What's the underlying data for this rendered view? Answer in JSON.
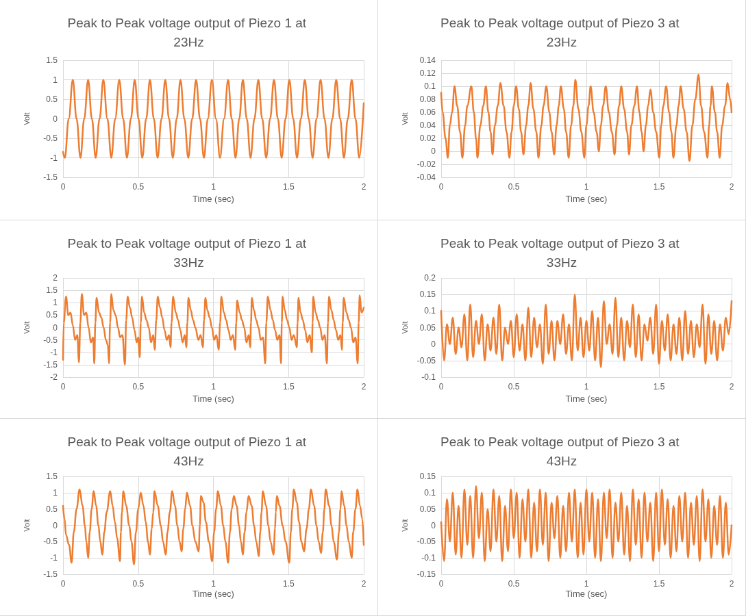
{
  "chart_data": [
    {
      "type": "line",
      "title": "Peak to Peak voltage output of Piezo 1 at 23Hz",
      "xlabel": "Time (sec)",
      "ylabel": "Volt",
      "xlim": [
        0,
        2
      ],
      "xticks": [
        0,
        0.5,
        1,
        1.5,
        2
      ],
      "ylim": [
        -1.5,
        1.5
      ],
      "yticks": [
        -1.5,
        -1,
        -0.5,
        0,
        0.5,
        1,
        1.5
      ],
      "grid": true,
      "marker": "none",
      "line_style": "solid",
      "series": [
        {
          "color": "#ed7d31",
          "x": [
            0,
            0.012,
            0.038,
            0.065,
            0.09,
            0.116,
            0.141,
            0.167,
            0.192,
            0.217,
            0.243,
            0.268,
            0.295,
            0.321,
            0.347,
            0.374,
            0.4,
            0.425,
            0.451,
            0.477,
            0.502,
            0.527,
            0.553,
            0.578,
            0.604,
            0.629,
            0.655,
            0.68,
            0.705,
            0.73,
            0.756,
            0.781,
            0.807,
            0.833,
            0.859,
            0.885,
            0.911,
            0.937,
            0.963,
            0.99,
            1.017,
            1.044,
            1.071,
            1.098,
            1.122,
            1.147,
            1.172,
            1.196,
            1.222,
            1.247,
            1.273,
            1.299,
            1.325,
            1.351,
            1.377,
            1.403,
            1.429,
            1.454,
            1.48,
            1.505,
            1.531,
            1.556,
            1.582,
            1.608,
            1.634,
            1.66,
            1.686,
            1.713,
            1.739,
            1.765,
            1.791,
            1.817,
            1.843,
            1.868,
            1.894,
            1.92,
            1.945,
            1.97,
            2
          ],
          "values": [
            -0.85,
            -1,
            0,
            1,
            0,
            -1,
            0,
            1,
            0,
            -1,
            0,
            1,
            0,
            -1,
            0,
            1,
            0,
            -1,
            0,
            1,
            0,
            -1,
            0,
            1,
            0,
            -1,
            0,
            1,
            0,
            -1,
            0,
            1,
            0,
            -1,
            0,
            1,
            0,
            -1,
            0,
            1,
            0,
            -1,
            0,
            1,
            0,
            -1,
            0,
            1,
            0,
            -1,
            0,
            1,
            0,
            -1,
            0,
            1,
            0,
            -1,
            0,
            1,
            0,
            -1,
            0,
            1,
            0,
            -1,
            0,
            1,
            0,
            -1,
            0,
            1,
            0,
            -1,
            0,
            1,
            0,
            -1,
            0.4
          ]
        }
      ]
    },
    {
      "type": "line",
      "title": "Peak to Peak voltage output of Piezo 3 at 23Hz",
      "xlabel": "Time (sec)",
      "ylabel": "Volt",
      "xlim": [
        0,
        2
      ],
      "xticks": [
        0,
        0.5,
        1,
        1.5,
        2
      ],
      "ylim": [
        -0.04,
        0.14
      ],
      "yticks": [
        -0.04,
        -0.02,
        0,
        0.02,
        0.04,
        0.06,
        0.08,
        0.1,
        0.12,
        0.14
      ],
      "grid": true,
      "marker": "none",
      "line_style": "solid",
      "series": [
        {
          "color": "#ed7d31",
          "x": [
            0,
            0.01,
            0.03,
            0.046,
            0.06,
            0.075,
            0.092,
            0.11,
            0.13,
            0.146,
            0.165,
            0.18,
            0.208,
            0.225,
            0.24,
            0.25,
            0.27,
            0.29,
            0.308,
            0.325,
            0.34,
            0.354,
            0.37,
            0.39,
            0.408,
            0.43,
            0.45,
            0.47,
            0.485,
            0.5,
            0.516,
            0.535,
            0.55,
            0.567,
            0.585,
            0.6,
            0.616,
            0.635,
            0.655,
            0.67,
            0.69,
            0.705,
            0.724,
            0.745,
            0.76,
            0.778,
            0.795,
            0.81,
            0.824,
            0.845,
            0.86,
            0.878,
            0.895,
            0.91,
            0.924,
            0.945,
            0.965,
            0.986,
            1.0,
            1.015,
            1.029,
            1.05,
            1.07,
            1.086,
            1.1,
            1.115,
            1.133,
            1.155,
            1.175,
            1.194,
            1.21,
            1.225,
            1.24,
            1.26,
            1.28,
            1.294,
            1.31,
            1.33,
            1.348,
            1.365,
            1.38,
            1.394,
            1.41,
            1.425,
            1.441,
            1.46,
            1.48,
            1.502,
            1.515,
            1.53,
            1.549,
            1.57,
            1.585,
            1.599,
            1.62,
            1.635,
            1.649,
            1.67,
            1.69,
            1.71,
            1.73,
            1.75,
            1.772,
            1.79,
            1.81,
            1.834,
            1.845,
            1.855,
            1.864,
            1.885,
            1.9,
            1.918,
            1.935,
            1.955,
            1.972,
            1.99,
            2
          ],
          "values": [
            0.09,
            0.06,
            0.02,
            -0.01,
            0.04,
            0.06,
            0.1,
            0.07,
            0.03,
            -0.01,
            0.04,
            0.07,
            0.1,
            0.06,
            0.02,
            -0.01,
            0.04,
            0.07,
            0.1,
            0.06,
            0.03,
            -0.005,
            0.04,
            0.07,
            0.105,
            0.07,
            0.03,
            -0.01,
            0.03,
            0.07,
            0.1,
            0.065,
            0.03,
            -0.005,
            0.04,
            0.07,
            0.105,
            0.065,
            0.03,
            -0.01,
            0.04,
            0.07,
            0.1,
            0.06,
            0.03,
            -0.005,
            0.04,
            0.07,
            0.1,
            0.065,
            0.03,
            -0.01,
            0.04,
            0.07,
            0.11,
            0.065,
            0.03,
            -0.01,
            0.04,
            0.07,
            0.1,
            0.06,
            0.03,
            0,
            0.04,
            0.07,
            0.1,
            0.06,
            0.03,
            -0.005,
            0.04,
            0.07,
            0.1,
            0.065,
            0.03,
            -0.005,
            0.04,
            0.07,
            0.1,
            0.06,
            0.03,
            0,
            0.04,
            0.07,
            0.095,
            0.06,
            0.03,
            -0.01,
            0.04,
            0.07,
            0.1,
            0.06,
            0.03,
            -0.01,
            0.04,
            0.07,
            0.1,
            0.065,
            0.03,
            -0.015,
            0.04,
            0.08,
            0.118,
            0.07,
            0.03,
            -0.01,
            0.04,
            0.07,
            0.1,
            0.06,
            0.03,
            -0.01,
            0.04,
            0.07,
            0.105,
            0.08,
            0.06
          ]
        }
      ]
    },
    {
      "type": "line",
      "title": "Peak to Peak voltage output of Piezo 1 at 33Hz",
      "xlabel": "Time (sec)",
      "ylabel": "Volt",
      "xlim": [
        0,
        2
      ],
      "xticks": [
        0,
        0.5,
        1,
        1.5,
        2
      ],
      "ylim": [
        -2,
        2
      ],
      "yticks": [
        -2,
        -1.5,
        -1,
        -0.5,
        0,
        0.5,
        1,
        1.5,
        2
      ],
      "grid": true,
      "marker": "none",
      "line_style": "solid",
      "series": [
        {
          "color": "#ed7d31",
          "x": [
            0,
            0.005,
            0.02,
            0.035,
            0.05,
            0.065,
            0.08,
            0.095,
            0.106,
            0.115,
            0.125,
            0.14,
            0.155,
            0.17,
            0.185,
            0.2,
            0.208,
            0.215,
            0.223,
            0.24,
            0.255,
            0.27,
            0.285,
            0.298,
            0.306,
            0.313,
            0.321,
            0.335,
            0.35,
            0.365,
            0.38,
            0.395,
            0.412,
            0.42,
            0.43,
            0.445,
            0.46,
            0.475,
            0.49,
            0.5,
            0.51,
            0.517,
            0.525,
            0.54,
            0.555,
            0.57,
            0.585,
            0.6,
            0.61,
            0.62,
            0.63,
            0.645,
            0.66,
            0.675,
            0.69,
            0.705,
            0.715,
            0.722,
            0.732,
            0.75,
            0.765,
            0.78,
            0.795,
            0.81,
            0.82,
            0.827,
            0.834,
            0.85,
            0.865,
            0.88,
            0.9,
            0.915,
            0.93,
            0.938,
            0.947,
            0.96,
            0.975,
            0.99,
            1.005,
            1.02,
            1.035,
            1.045,
            1.053,
            1.07,
            1.085,
            1.1,
            1.115,
            1.13,
            1.145,
            1.152,
            1.158,
            1.175,
            1.19,
            1.205,
            1.22,
            1.235,
            1.245,
            1.25,
            1.256,
            1.27,
            1.285,
            1.3,
            1.315,
            1.33,
            1.345,
            1.352,
            1.362,
            1.38,
            1.395,
            1.41,
            1.425,
            1.44,
            1.45,
            1.455,
            1.46,
            1.475,
            1.49,
            1.505,
            1.52,
            1.535,
            1.555,
            1.56,
            1.566,
            1.58,
            1.595,
            1.61,
            1.625,
            1.64,
            1.655,
            1.66,
            1.664,
            1.68,
            1.695,
            1.71,
            1.725,
            1.74,
            1.755,
            1.762,
            1.769,
            1.785,
            1.8,
            1.815,
            1.83,
            1.845,
            1.855,
            1.86,
            1.867,
            1.885,
            1.9,
            1.915,
            1.93,
            1.945,
            1.96,
            1.966,
            1.973,
            1.985,
            2
          ],
          "values": [
            -1.3,
            0.2,
            1.25,
            0.5,
            0.6,
            0.1,
            -0.5,
            -0.3,
            -1.4,
            0.2,
            1.35,
            0.5,
            0.6,
            0,
            -0.6,
            -0.4,
            -1.45,
            0.2,
            1.2,
            0.6,
            0.4,
            0,
            -0.5,
            -0.7,
            -1.45,
            0.2,
            1.35,
            0.7,
            0.5,
            0,
            -0.4,
            -0.3,
            -1.5,
            0.3,
            1.25,
            0.8,
            0.4,
            -0.1,
            -0.6,
            -0.4,
            -1.2,
            0.2,
            1.25,
            0.6,
            0.3,
            0,
            -0.6,
            -0.3,
            -0.9,
            0.3,
            1.25,
            0.8,
            0.4,
            -0.1,
            -0.5,
            -0.3,
            -0.8,
            0.2,
            1.25,
            0.6,
            0.3,
            -0.1,
            -0.6,
            -0.3,
            -0.8,
            0.2,
            1.2,
            0.7,
            0.3,
            0,
            -0.5,
            -0.3,
            -0.8,
            0.3,
            1.2,
            0.7,
            0.4,
            0,
            -0.5,
            -0.3,
            -0.9,
            0.2,
            1.25,
            0.6,
            0.3,
            -0.1,
            -0.5,
            -0.3,
            -0.9,
            0.2,
            1.1,
            0.6,
            0.3,
            0,
            -0.6,
            -0.3,
            -0.8,
            0.2,
            1.2,
            0.7,
            0.3,
            0,
            -0.5,
            -0.4,
            -1.45,
            0.2,
            1.25,
            0.7,
            0.3,
            -0.1,
            -0.5,
            -0.3,
            -1.45,
            0.2,
            1.25,
            0.7,
            0.3,
            0,
            -0.5,
            -0.3,
            -0.8,
            0.2,
            1.2,
            0.6,
            0.3,
            -0.1,
            -0.6,
            -0.3,
            -1,
            0.2,
            1.25,
            0.6,
            0.3,
            0,
            -0.5,
            -0.3,
            -1.45,
            0.2,
            1.25,
            0.7,
            0.3,
            -0.1,
            -0.5,
            -0.3,
            -0.9,
            0.2,
            1.2,
            0.6,
            0.3,
            0,
            -0.6,
            -0.4,
            -1.45,
            0.2,
            1.3,
            0.6,
            0.8
          ]
        }
      ]
    },
    {
      "type": "line",
      "title": "Peak to Peak voltage output of Piezo 3 at 33Hz",
      "xlabel": "Time (sec)",
      "ylabel": "Volt",
      "xlim": [
        0,
        2
      ],
      "xticks": [
        0,
        0.5,
        1,
        1.5,
        2
      ],
      "ylim": [
        -0.1,
        0.2
      ],
      "yticks": [
        -0.1,
        -0.05,
        0,
        0.05,
        0.1,
        0.15,
        0.2
      ],
      "grid": true,
      "marker": "none",
      "line_style": "solid",
      "series": [
        {
          "color": "#ed7d31",
          "x": [
            0,
            0.02,
            0.04,
            0.06,
            0.08,
            0.1,
            0.12,
            0.14,
            0.16,
            0.18,
            0.2,
            0.22,
            0.24,
            0.26,
            0.28,
            0.3,
            0.32,
            0.34,
            0.36,
            0.38,
            0.4,
            0.42,
            0.44,
            0.46,
            0.48,
            0.5,
            0.52,
            0.54,
            0.56,
            0.58,
            0.6,
            0.62,
            0.64,
            0.66,
            0.68,
            0.7,
            0.72,
            0.74,
            0.76,
            0.78,
            0.8,
            0.82,
            0.84,
            0.86,
            0.88,
            0.9,
            0.92,
            0.94,
            0.96,
            0.98,
            1,
            1.02,
            1.04,
            1.06,
            1.08,
            1.1,
            1.12,
            1.14,
            1.16,
            1.18,
            1.2,
            1.22,
            1.24,
            1.26,
            1.28,
            1.3,
            1.32,
            1.34,
            1.36,
            1.38,
            1.4,
            1.42,
            1.44,
            1.46,
            1.48,
            1.5,
            1.52,
            1.54,
            1.56,
            1.58,
            1.6,
            1.62,
            1.64,
            1.66,
            1.68,
            1.7,
            1.72,
            1.74,
            1.76,
            1.78,
            1.8,
            1.82,
            1.84,
            1.86,
            1.88,
            1.9,
            1.92,
            1.94,
            1.96,
            1.98,
            2
          ],
          "values": [
            0.1,
            -0.05,
            0.06,
            0,
            0.08,
            -0.03,
            0.05,
            -0.01,
            0.09,
            -0.05,
            0.12,
            -0.04,
            0.07,
            0,
            0.09,
            -0.05,
            0.06,
            -0.02,
            0.08,
            -0.03,
            0.12,
            -0.05,
            0.05,
            0,
            0.07,
            -0.04,
            0.09,
            -0.02,
            0.06,
            -0.05,
            0.11,
            -0.04,
            0.08,
            -0.01,
            0.06,
            -0.06,
            0.12,
            -0.03,
            0.07,
            -0.05,
            0.07,
            0,
            0.09,
            -0.03,
            0.06,
            -0.05,
            0.15,
            -0.02,
            0.08,
            -0.04,
            0.07,
            -0.02,
            0.1,
            -0.05,
            0.08,
            -0.07,
            0.13,
            0,
            0.06,
            -0.03,
            0.14,
            -0.04,
            0.08,
            -0.05,
            0.07,
            -0.01,
            0.12,
            -0.04,
            0.09,
            -0.05,
            0.06,
            0.01,
            0.08,
            -0.03,
            0.12,
            -0.06,
            0.07,
            -0.02,
            0.09,
            -0.05,
            0.06,
            -0.03,
            0.08,
            -0.05,
            0.1,
            -0.03,
            0.07,
            -0.04,
            0.06,
            -0.01,
            0.12,
            -0.06,
            0.09,
            -0.03,
            0.07,
            -0.05,
            0.06,
            -0.02,
            0.08,
            0.03,
            0.13
          ]
        }
      ]
    },
    {
      "type": "line",
      "title": "Peak to Peak voltage output of Piezo 1 at 43Hz",
      "xlabel": "Time (sec)",
      "ylabel": "Volt",
      "xlim": [
        0,
        2
      ],
      "xticks": [
        0,
        0.5,
        1,
        1.5,
        2
      ],
      "ylim": [
        -1.5,
        1.5
      ],
      "yticks": [
        -1.5,
        -1,
        -0.5,
        0,
        0.5,
        1,
        1.5
      ],
      "grid": true,
      "marker": "none",
      "line_style": "solid",
      "series": [
        {
          "color": "#ed7d31",
          "x": [
            0,
            0.01,
            0.02,
            0.04,
            0.057,
            0.072,
            0.09,
            0.11,
            0.13,
            0.145,
            0.155,
            0.167,
            0.178,
            0.19,
            0.204,
            0.22,
            0.235,
            0.248,
            0.261,
            0.275,
            0.29,
            0.314,
            0.33,
            0.345,
            0.36,
            0.379,
            0.385,
            0.392,
            0.401,
            0.42,
            0.44,
            0.455,
            0.472,
            0.485,
            0.5,
            0.517,
            0.535,
            0.55,
            0.565,
            0.578,
            0.59,
            0.6,
            0.608,
            0.63,
            0.65,
            0.665,
            0.683,
            0.695,
            0.71,
            0.726,
            0.745,
            0.76,
            0.775,
            0.789,
            0.8,
            0.812,
            0.824,
            0.845,
            0.86,
            0.88,
            0.902,
            0.91,
            0.917,
            0.935,
            0.95,
            0.97,
            0.992,
            1.005,
            1.018,
            1.03,
            1.05,
            1.065,
            1.08,
            1.098,
            1.11,
            1.122,
            1.136,
            1.155,
            1.17,
            1.183,
            1.196,
            1.208,
            1.22,
            1.234,
            1.255,
            1.27,
            1.285,
            1.302,
            1.312,
            1.32,
            1.329,
            1.35,
            1.365,
            1.38,
            1.4,
            1.41,
            1.415,
            1.422,
            1.44,
            1.46,
            1.48,
            1.505,
            1.515,
            1.525,
            1.535,
            1.555,
            1.57,
            1.585,
            1.603,
            1.62,
            1.635,
            1.649,
            1.67,
            1.685,
            1.7,
            1.716,
            1.728,
            1.738,
            1.747,
            1.77,
            1.785,
            1.8,
            1.822,
            1.835,
            1.845,
            1.852,
            1.87,
            1.885,
            1.9,
            1.92,
            1.93,
            1.945,
            1.958,
            1.975,
            1.99,
            2
          ],
          "values": [
            0.6,
            0.2,
            -0.3,
            -0.6,
            -1.15,
            -0.2,
            0.5,
            1.1,
            0.6,
            0,
            -0.5,
            -1,
            -0.2,
            0.5,
            1.05,
            0.6,
            0,
            -0.5,
            -0.9,
            -0.2,
            0.4,
            1.05,
            0.6,
            0.1,
            -0.4,
            -1.1,
            -0.2,
            0.4,
            1.05,
            0.6,
            0,
            -0.5,
            -1.2,
            -0.2,
            0.5,
            1,
            0.6,
            0.1,
            -0.5,
            -0.9,
            -0.1,
            0.4,
            1.05,
            0.6,
            0,
            -0.5,
            -0.9,
            -0.2,
            0.4,
            1.05,
            0.6,
            0,
            -0.5,
            -0.8,
            -0.1,
            0.5,
            1,
            0.6,
            0,
            -0.5,
            -0.8,
            0,
            0.9,
            0.7,
            0.1,
            -0.5,
            -1.1,
            -0.2,
            0.5,
            1.05,
            0.6,
            0,
            -0.5,
            -1.15,
            -0.2,
            0.5,
            0.9,
            0.6,
            0,
            -0.5,
            -0.9,
            -0.2,
            0.4,
            0.9,
            0.6,
            0,
            -0.5,
            -0.95,
            -0.2,
            0.4,
            1.05,
            0.6,
            0,
            -0.5,
            -0.9,
            -0.1,
            0.4,
            0.9,
            0.6,
            0,
            -0.5,
            -1.15,
            -0.2,
            0.5,
            1.1,
            0.7,
            0.1,
            -0.5,
            -0.8,
            -0.1,
            0.5,
            1.1,
            0.6,
            0,
            -0.5,
            -0.85,
            -0.2,
            0.5,
            1.1,
            0.6,
            0,
            -0.5,
            -1.05,
            -0.2,
            0.5,
            1.05,
            0.6,
            0,
            -0.5,
            -1,
            -0.2,
            0.5,
            1.1,
            0.6,
            0.2,
            -0.6
          ]
        }
      ]
    },
    {
      "type": "line",
      "title": "Peak to Peak voltage output of Piezo 3 at 43Hz",
      "xlabel": "Time (sec)",
      "ylabel": "Volt",
      "xlim": [
        0,
        2
      ],
      "xticks": [
        0,
        0.5,
        1,
        1.5,
        2
      ],
      "ylim": [
        -0.15,
        0.15
      ],
      "yticks": [
        -0.15,
        -0.1,
        -0.05,
        0,
        0.05,
        0.1,
        0.15
      ],
      "grid": true,
      "marker": "none",
      "line_style": "solid",
      "series": [
        {
          "color": "#ed7d31",
          "x": [
            0,
            0.02,
            0.04,
            0.06,
            0.08,
            0.1,
            0.12,
            0.14,
            0.16,
            0.18,
            0.2,
            0.22,
            0.24,
            0.26,
            0.28,
            0.3,
            0.32,
            0.34,
            0.36,
            0.38,
            0.4,
            0.42,
            0.44,
            0.46,
            0.48,
            0.5,
            0.52,
            0.54,
            0.56,
            0.58,
            0.6,
            0.62,
            0.64,
            0.66,
            0.68,
            0.7,
            0.72,
            0.74,
            0.76,
            0.78,
            0.8,
            0.82,
            0.84,
            0.86,
            0.88,
            0.9,
            0.92,
            0.94,
            0.96,
            0.98,
            1,
            1.02,
            1.04,
            1.06,
            1.08,
            1.1,
            1.12,
            1.14,
            1.16,
            1.18,
            1.2,
            1.22,
            1.24,
            1.26,
            1.28,
            1.3,
            1.32,
            1.34,
            1.36,
            1.38,
            1.4,
            1.42,
            1.44,
            1.46,
            1.48,
            1.5,
            1.52,
            1.54,
            1.56,
            1.58,
            1.6,
            1.62,
            1.64,
            1.66,
            1.68,
            1.7,
            1.72,
            1.74,
            1.76,
            1.78,
            1.8,
            1.82,
            1.84,
            1.86,
            1.88,
            1.9,
            1.92,
            1.94,
            1.96,
            1.98,
            2
          ],
          "values": [
            0.01,
            -0.11,
            0.08,
            -0.05,
            0.1,
            -0.09,
            0.06,
            -0.1,
            0.11,
            -0.06,
            0.09,
            -0.1,
            0.12,
            -0.04,
            0.1,
            -0.11,
            0.05,
            -0.08,
            0.11,
            -0.05,
            0.09,
            -0.11,
            0.06,
            -0.08,
            0.11,
            -0.04,
            0.1,
            -0.1,
            0.08,
            -0.05,
            0.11,
            -0.1,
            0.07,
            -0.08,
            0.11,
            -0.06,
            0.1,
            -0.11,
            0.07,
            -0.04,
            0.09,
            -0.1,
            0.06,
            -0.08,
            0.1,
            -0.05,
            0.11,
            -0.1,
            0.07,
            -0.09,
            0.11,
            -0.05,
            0.1,
            -0.1,
            0.08,
            -0.11,
            0.1,
            -0.04,
            0.11,
            -0.1,
            0.07,
            -0.05,
            0.1,
            -0.09,
            0.06,
            -0.11,
            0.11,
            -0.06,
            0.08,
            -0.1,
            0.1,
            -0.05,
            0.07,
            -0.11,
            0.1,
            -0.08,
            0.11,
            -0.06,
            0.08,
            -0.1,
            0.06,
            -0.08,
            0.09,
            -0.05,
            0.1,
            -0.1,
            0.07,
            -0.06,
            0.09,
            -0.11,
            0.11,
            -0.05,
            0.08,
            -0.1,
            0.06,
            -0.06,
            0.09,
            -0.1,
            0.07,
            -0.09,
            0
          ]
        }
      ]
    }
  ]
}
